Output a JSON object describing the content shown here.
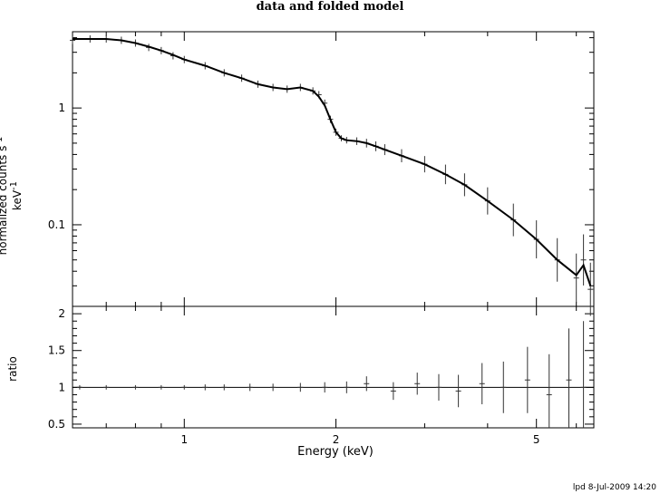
{
  "title": "data and folded model",
  "footer": "lpd  8-Jul-2009 14:20",
  "ylabel_top_main": "normalized counts s",
  "ylabel_top_sup1": "-1",
  "ylabel_top_mid": " keV",
  "ylabel_top_sup2": "-1",
  "ylabel_bottom": "ratio",
  "xlabel": "Energy (keV)",
  "chart_data": [
    {
      "type": "scatter",
      "title": "data and folded model",
      "xlabel": "Energy (keV)",
      "ylabel": "normalized counts s^-1 keV^-1",
      "xscale": "log",
      "yscale": "log",
      "xlim": [
        0.6,
        6.5
      ],
      "ylim": [
        0.02,
        4.5
      ],
      "ytick_labels": [
        "0.1",
        "1"
      ],
      "series": [
        {
          "style": "data points with error bars",
          "x": [
            0.6,
            0.65,
            0.7,
            0.75,
            0.8,
            0.85,
            0.9,
            0.95,
            1.0,
            1.1,
            1.2,
            1.3,
            1.4,
            1.5,
            1.6,
            1.7,
            1.8,
            1.85,
            1.9,
            1.95,
            2.0,
            2.05,
            2.1,
            2.2,
            2.3,
            2.4,
            2.5,
            2.7,
            3.0,
            3.3,
            3.6,
            4.0,
            4.5,
            5.0,
            5.5,
            6.0,
            6.2,
            6.4
          ],
          "y": [
            3.8,
            3.9,
            3.9,
            3.8,
            3.6,
            3.3,
            3.1,
            2.8,
            2.6,
            2.3,
            2.0,
            1.8,
            1.6,
            1.5,
            1.45,
            1.5,
            1.4,
            1.3,
            1.1,
            0.8,
            0.62,
            0.55,
            0.53,
            0.52,
            0.5,
            0.47,
            0.44,
            0.39,
            0.33,
            0.27,
            0.22,
            0.16,
            0.11,
            0.075,
            0.05,
            0.035,
            0.05,
            0.028
          ]
        },
        {
          "style": "model line",
          "x": [
            0.6,
            0.65,
            0.7,
            0.75,
            0.8,
            0.85,
            0.9,
            0.95,
            1.0,
            1.1,
            1.2,
            1.3,
            1.4,
            1.5,
            1.6,
            1.7,
            1.8,
            1.85,
            1.9,
            1.95,
            2.0,
            2.05,
            2.1,
            2.2,
            2.3,
            2.4,
            2.5,
            2.7,
            3.0,
            3.3,
            3.6,
            4.0,
            4.5,
            5.0,
            5.5,
            6.0,
            6.2,
            6.4
          ],
          "y": [
            3.9,
            3.9,
            3.9,
            3.8,
            3.6,
            3.35,
            3.1,
            2.85,
            2.6,
            2.3,
            2.0,
            1.8,
            1.6,
            1.5,
            1.45,
            1.5,
            1.4,
            1.25,
            1.05,
            0.8,
            0.62,
            0.55,
            0.53,
            0.52,
            0.5,
            0.47,
            0.44,
            0.39,
            0.33,
            0.27,
            0.22,
            0.16,
            0.11,
            0.075,
            0.05,
            0.037,
            0.045,
            0.03
          ]
        }
      ]
    },
    {
      "type": "scatter",
      "xlabel": "Energy (keV)",
      "ylabel": "ratio",
      "xscale": "log",
      "xlim": [
        0.6,
        6.5
      ],
      "ylim": [
        0.45,
        2.1
      ],
      "ytick_labels": [
        "0.5",
        "1",
        "1.5",
        "2"
      ],
      "xtick_labels": [
        "1",
        "2",
        "5"
      ],
      "reference_line": 1,
      "series": [
        {
          "style": "ratio points with error bars",
          "x": [
            0.62,
            0.7,
            0.8,
            0.9,
            1.0,
            1.1,
            1.2,
            1.35,
            1.5,
            1.7,
            1.9,
            2.1,
            2.3,
            2.6,
            2.9,
            3.2,
            3.5,
            3.9,
            4.3,
            4.8,
            5.3,
            5.8,
            6.2
          ],
          "y": [
            1.0,
            1.0,
            1.0,
            1.0,
            1.0,
            1.0,
            1.0,
            1.0,
            1.0,
            1.0,
            1.0,
            1.0,
            1.05,
            0.95,
            1.05,
            1.0,
            0.95,
            1.05,
            1.0,
            1.1,
            0.9,
            1.1,
            1.0
          ],
          "err": [
            0.03,
            0.03,
            0.03,
            0.03,
            0.03,
            0.04,
            0.04,
            0.05,
            0.05,
            0.06,
            0.07,
            0.08,
            0.1,
            0.12,
            0.15,
            0.18,
            0.22,
            0.28,
            0.35,
            0.45,
            0.55,
            0.7,
            0.9
          ]
        }
      ]
    }
  ]
}
